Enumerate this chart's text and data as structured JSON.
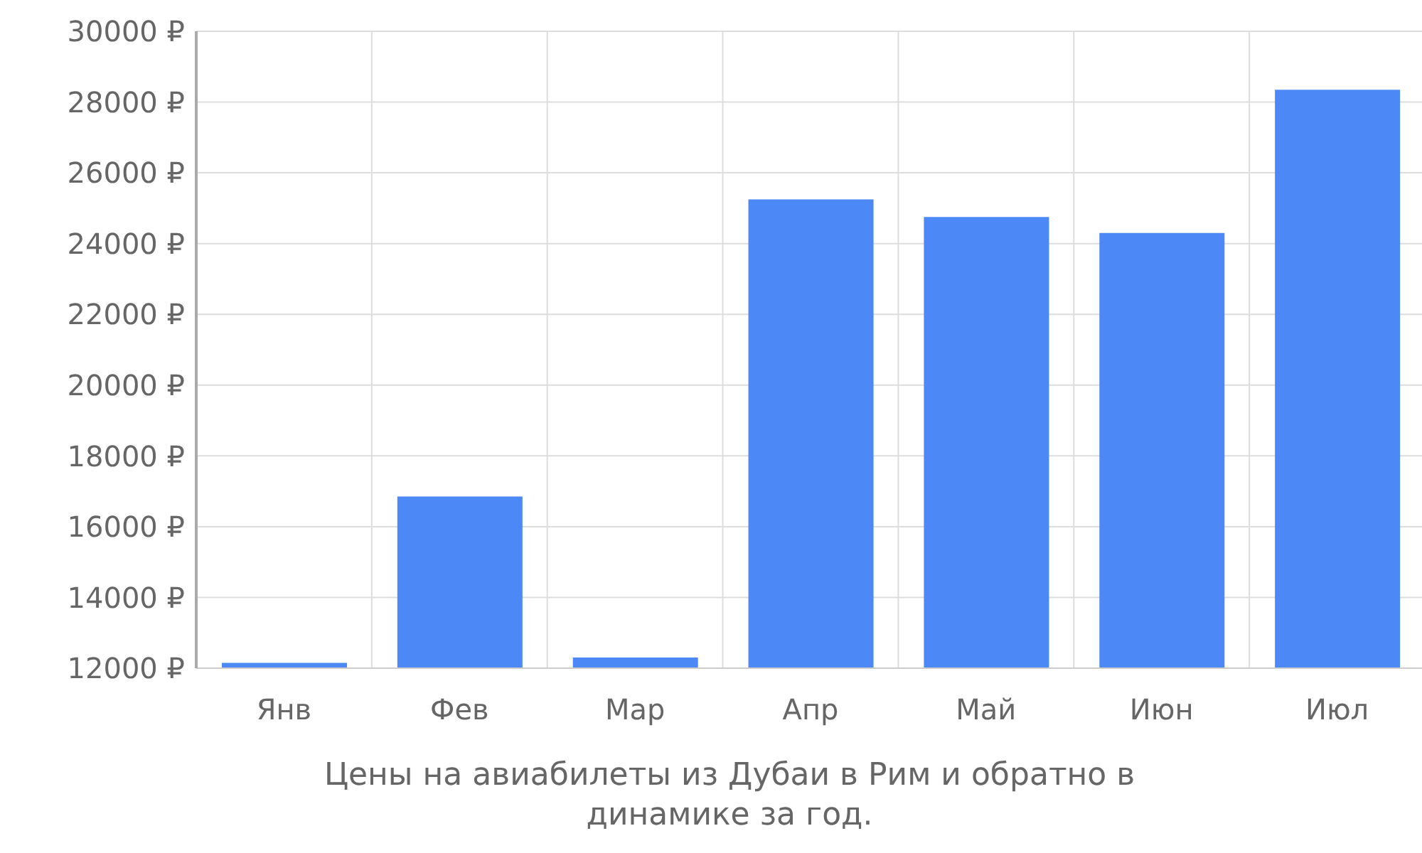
{
  "chart_data": {
    "type": "bar",
    "xlabel": "Цены на авиабилеты из Дубаи в Рим и обратно в динамике за год.",
    "categories": [
      "Янв",
      "Фев",
      "Мар",
      "Апр",
      "Май",
      "Июн",
      "Июл"
    ],
    "values": [
      12150,
      16850,
      12300,
      25250,
      24750,
      24300,
      28350
    ],
    "color": "#4d88f7",
    "ylim": [
      12000,
      30000
    ],
    "yticks": [
      {
        "value": 12000,
        "label": "12000 ₽"
      },
      {
        "value": 14000,
        "label": "14000 ₽"
      },
      {
        "value": 16000,
        "label": "16000 ₽"
      },
      {
        "value": 18000,
        "label": "18000 ₽"
      },
      {
        "value": 20000,
        "label": "20000 ₽"
      },
      {
        "value": 22000,
        "label": "22000 ₽"
      },
      {
        "value": 24000,
        "label": "24000 ₽"
      },
      {
        "value": 26000,
        "label": "26000 ₽"
      },
      {
        "value": 28000,
        "label": "28000 ₽"
      },
      {
        "value": 30000,
        "label": "30000 ₽"
      }
    ],
    "grid": true
  }
}
